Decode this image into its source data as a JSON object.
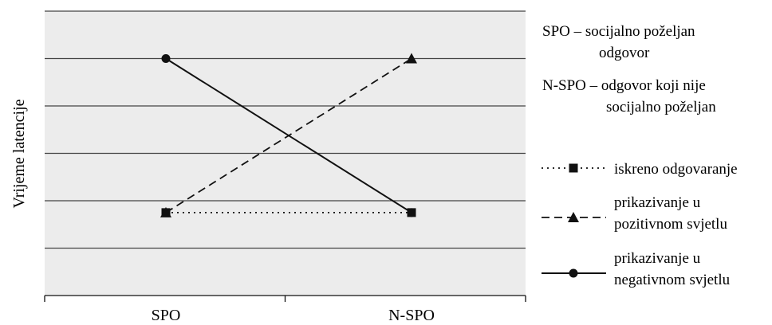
{
  "chart_data": {
    "type": "line",
    "ylabel": "Vrijeme latencije",
    "categories": [
      "SPO",
      "N-SPO"
    ],
    "ylim": [
      0,
      6
    ],
    "grid": true,
    "legend_position": "right",
    "series": [
      {
        "name": "iskreno odgovaranje",
        "style": "dotted",
        "marker": "square",
        "values": [
          1.75,
          1.75
        ]
      },
      {
        "name": "prikazivanje u pozitivnom svjetlu",
        "style": "dashed",
        "marker": "triangle",
        "values": [
          1.75,
          5.0
        ]
      },
      {
        "name": "prikazivanje u negativnom svjetlu",
        "style": "solid",
        "marker": "circle",
        "values": [
          5.0,
          1.75
        ]
      }
    ],
    "legend_notes": [
      {
        "term": "SPO",
        "line1": "SPO – socijalno poželjan",
        "line2": "odgovor"
      },
      {
        "term": "N-SPO",
        "line1": "N-SPO – odgovor koji nije",
        "line2": "socijalno poželjan"
      }
    ],
    "legend_entries": [
      {
        "line1": "iskreno odgovaranje",
        "line2": ""
      },
      {
        "line1": "prikazivanje u",
        "line2": "pozitivnom svjetlu"
      },
      {
        "line1": "prikazivanje u",
        "line2": "negativnom svjetlu"
      }
    ],
    "colors": {
      "plot_background": "#ececec",
      "grid": "#444444",
      "line": "#111111"
    }
  }
}
